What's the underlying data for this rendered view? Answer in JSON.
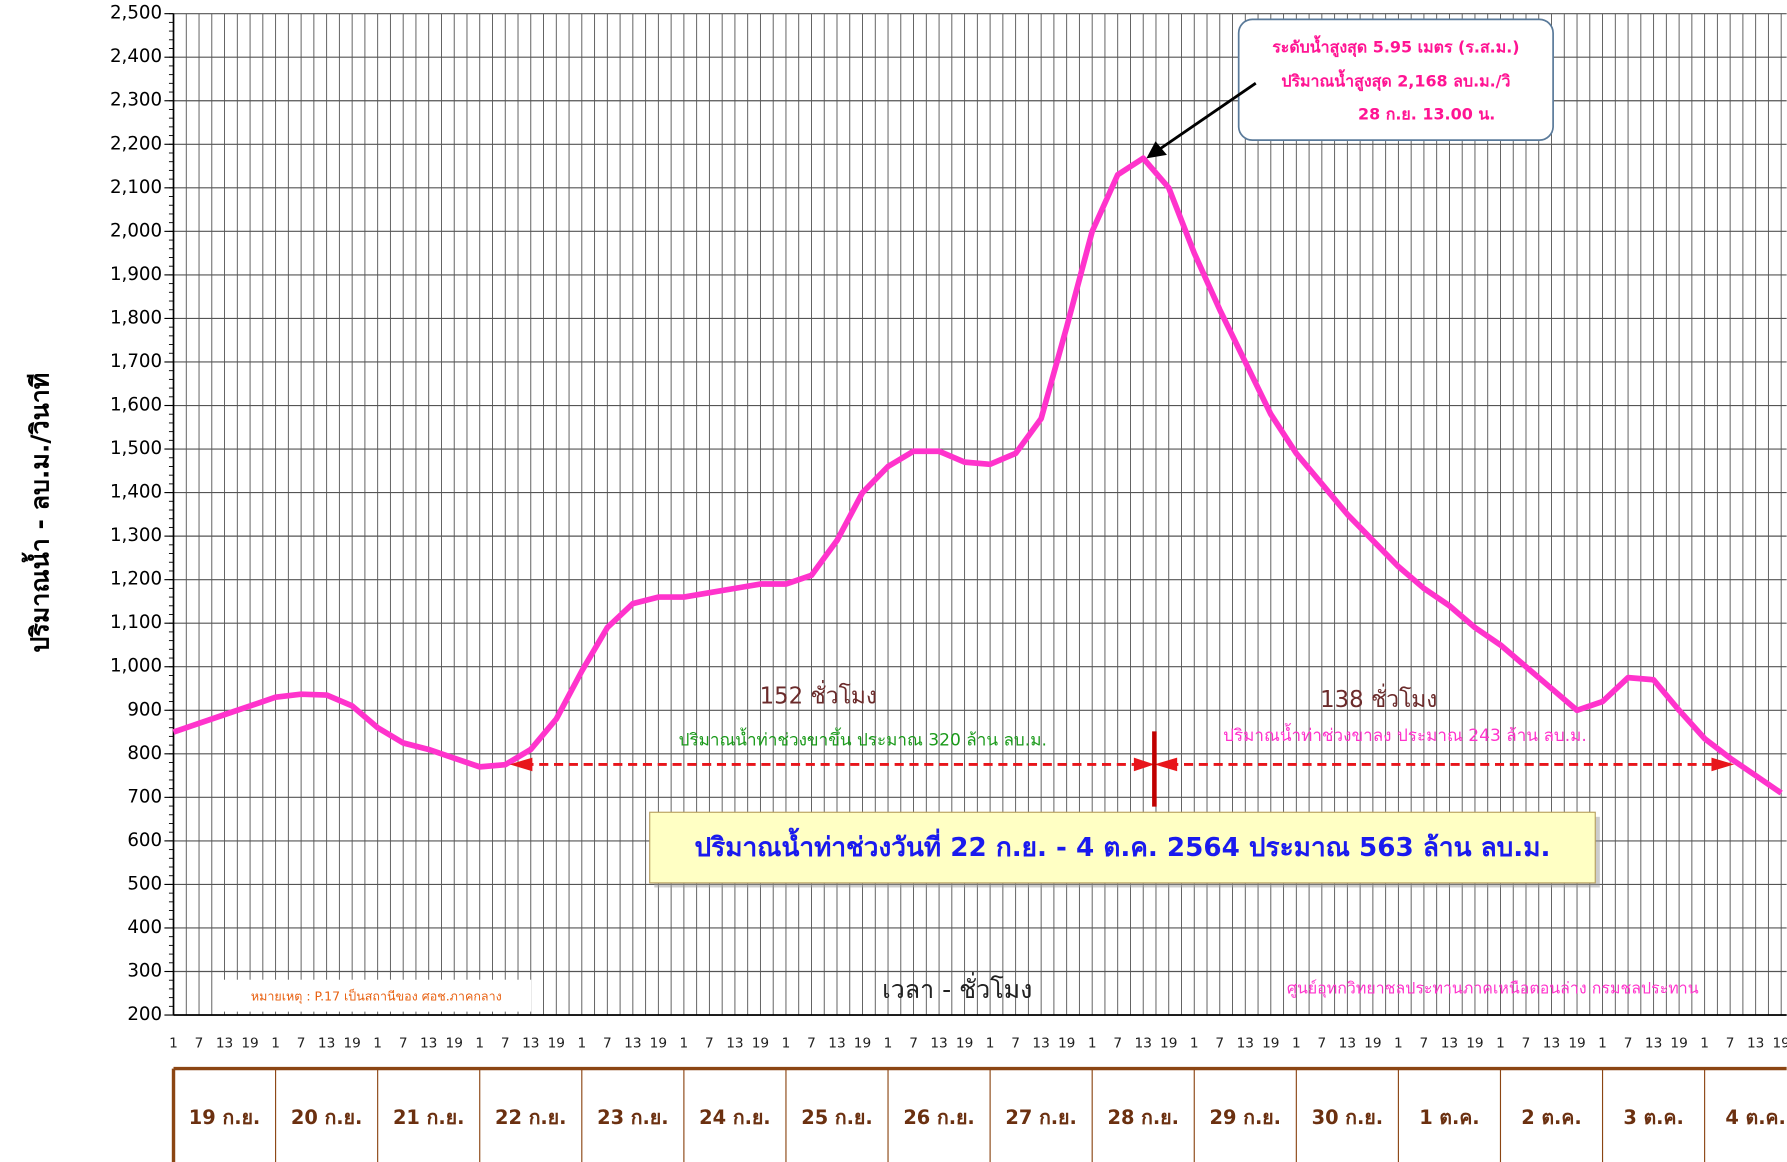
{
  "chart_data": {
    "type": "line",
    "y_label": "ปริมาณน้ำ  -  ลบ.ม./วินาที",
    "x_label": "เวลา - ชั่วโมง",
    "note": "หมายเหตุ : P.17 เป็นสถานีของ ศอช.ภาคกลาง",
    "source": "ศูนย์อุทกวิทยาชลประทานภาคเหนือตอนล่าง กรมชลประทาน",
    "peak_annotation": [
      "ระดับน้ำสูงสุด 5.95 เมตร (ร.ส.ม.)",
      "ปริมาณน้ำสูงสุด 2,168 ลบ.ม./วิ",
      "28 ก.ย. 13.00 น."
    ],
    "rising_hours": "152 ชั่วโมง",
    "rising_volume": "ปริมาณน้ำท่าช่วงขาขึ้น ประมาณ 320 ล้าน ลบ.ม.",
    "falling_hours": "138 ชั่วโมง",
    "falling_volume": "ปริมาณน้ำท่าช่วงขาลง ประมาณ 243 ล้าน ลบ.ม.",
    "summary": "ปริมาณน้ำท่าช่วงวันที่  22 ก.ย. - 4 ต.ค. 2564 ประมาณ 563 ล้าน ลบ.ม.",
    "days": [
      "19 ก.ย.",
      "20 ก.ย.",
      "21 ก.ย.",
      "22 ก.ย.",
      "23 ก.ย.",
      "24 ก.ย.",
      "25 ก.ย.",
      "26 ก.ย.",
      "27 ก.ย.",
      "28 ก.ย.",
      "29 ก.ย.",
      "30 ก.ย.",
      "1 ต.ค.",
      "2 ต.ค.",
      "3 ต.ค.",
      "4 ต.ค."
    ],
    "categories": [
      "1",
      "7",
      "13",
      "19",
      "1",
      "7",
      "13",
      "19",
      "1",
      "7",
      "13",
      "19",
      "1",
      "7",
      "13",
      "19",
      "1",
      "7",
      "13",
      "19",
      "1",
      "7",
      "13",
      "19",
      "1",
      "7",
      "13",
      "19",
      "1",
      "7",
      "13",
      "19",
      "1",
      "7",
      "13",
      "19",
      "1",
      "7",
      "13",
      "19",
      "1",
      "7",
      "13",
      "19",
      "1",
      "7",
      "13",
      "19",
      "1",
      "7",
      "13",
      "19",
      "1",
      "7",
      "13",
      "19",
      "1",
      "7",
      "13",
      "19",
      "1",
      "7",
      "13",
      "19"
    ],
    "series": [
      {
        "name": "ปริมาณน้ำ",
        "color": "#ff33cc",
        "values": [
          850,
          870,
          890,
          910,
          930,
          937,
          935,
          910,
          860,
          825,
          810,
          790,
          770,
          775,
          810,
          880,
          990,
          1090,
          1145,
          1160,
          1160,
          1170,
          1180,
          1190,
          1190,
          1210,
          1290,
          1400,
          1460,
          1495,
          1495,
          1470,
          1465,
          1490,
          1570,
          1780,
          2000,
          2130,
          2168,
          2100,
          1950,
          1820,
          1700,
          1580,
          1490,
          1420,
          1350,
          1290,
          1230,
          1180,
          1140,
          1090,
          1050,
          1000,
          950,
          900,
          920,
          975,
          970,
          900,
          835,
          790,
          750,
          710
        ]
      }
    ],
    "ylim": [
      200,
      2500
    ],
    "yticks": [
      200,
      300,
      400,
      500,
      600,
      700,
      800,
      900,
      {
        "value": 1000,
        "label": "1,000"
      },
      {
        "value": 1100,
        "label": "1,100"
      },
      {
        "value": 1200,
        "label": "1,200"
      },
      {
        "value": 1300,
        "label": "1,300"
      },
      {
        "value": 1400,
        "label": "1,400"
      },
      {
        "value": 1500,
        "label": "1,500"
      },
      {
        "value": 1600,
        "label": "1,600"
      },
      {
        "value": 1700,
        "label": "1,700"
      },
      {
        "value": 1800,
        "label": "1,800"
      },
      {
        "value": 1900,
        "label": "1,900"
      },
      {
        "value": 2000,
        "label": "2,000"
      },
      {
        "value": 2100,
        "label": "2,100"
      },
      {
        "value": 2200,
        "label": "2,200"
      },
      {
        "value": 2300,
        "label": "2,300"
      },
      {
        "value": 2400,
        "label": "2,400"
      },
      {
        "value": 2500,
        "label": "2,500"
      }
    ],
    "grid": true
  }
}
